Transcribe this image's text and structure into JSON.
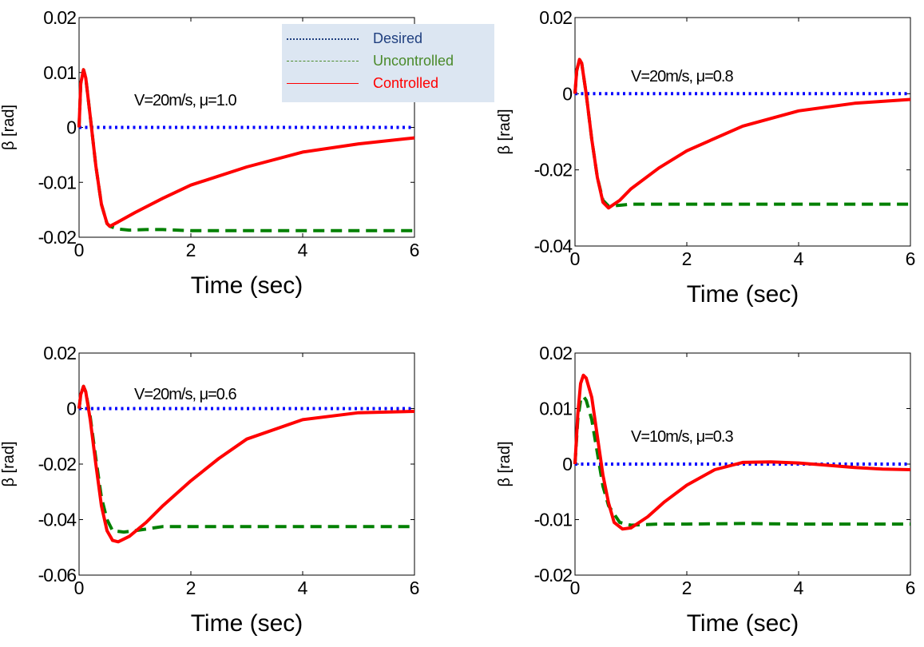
{
  "legend": {
    "items": [
      {
        "label": "Desired",
        "color": "#0000ff",
        "text_color": "#1f3f7f",
        "style": "dotted"
      },
      {
        "label": "Uncontrolled",
        "color": "#008000",
        "text_color": "#4a8a2a",
        "style": "dashed"
      },
      {
        "label": "Controlled",
        "color": "#ff0000",
        "text_color": "#ff0000",
        "style": "solid"
      }
    ]
  },
  "colors": {
    "desired": "#0000ff",
    "uncontrolled": "#008000",
    "controlled": "#ff0000"
  },
  "chart_data": [
    {
      "type": "line",
      "annotation": "V=20m/s, μ=1.0",
      "xlabel": "Time (sec)",
      "ylabel": "β [rad]",
      "xlim": [
        0,
        6
      ],
      "ylim": [
        -0.02,
        0.02
      ],
      "xticks": [
        "0",
        "2",
        "4",
        "6"
      ],
      "yticks": [
        "-0.02",
        "-0.01",
        "0",
        "0.01",
        "0.02"
      ],
      "series": [
        {
          "name": "Desired",
          "x": [
            0,
            6
          ],
          "y": [
            0,
            0
          ]
        },
        {
          "name": "Uncontrolled",
          "x": [
            0,
            0.03,
            0.08,
            0.12,
            0.2,
            0.3,
            0.4,
            0.5,
            0.55,
            0.7,
            0.9,
            1.2,
            1.5,
            2,
            3,
            4,
            5,
            6
          ],
          "y": [
            0,
            0.008,
            0.0105,
            0.009,
            0.002,
            -0.007,
            -0.014,
            -0.0175,
            -0.018,
            -0.0185,
            -0.0187,
            -0.0186,
            -0.0186,
            -0.0188,
            -0.0188,
            -0.0188,
            -0.0188,
            -0.0188
          ]
        },
        {
          "name": "Controlled",
          "x": [
            0,
            0.03,
            0.08,
            0.12,
            0.2,
            0.3,
            0.4,
            0.5,
            0.55,
            0.7,
            1,
            1.5,
            2,
            3,
            4,
            5,
            6
          ],
          "y": [
            0,
            0.008,
            0.0105,
            0.009,
            0.002,
            -0.007,
            -0.014,
            -0.0175,
            -0.018,
            -0.0172,
            -0.0155,
            -0.0129,
            -0.0105,
            -0.0072,
            -0.0045,
            -0.003,
            -0.0019
          ]
        }
      ]
    },
    {
      "type": "line",
      "annotation": "V=20m/s, μ=0.8",
      "xlabel": "Time (sec)",
      "ylabel": "β [rad]",
      "xlim": [
        0,
        6
      ],
      "ylim": [
        -0.04,
        0.02
      ],
      "xticks": [
        "0",
        "2",
        "4",
        "6"
      ],
      "yticks": [
        "-0.04",
        "-0.02",
        "0",
        "0.02"
      ],
      "series": [
        {
          "name": "Desired",
          "x": [
            0,
            6
          ],
          "y": [
            0,
            0
          ]
        },
        {
          "name": "Uncontrolled",
          "x": [
            0,
            0.03,
            0.08,
            0.12,
            0.2,
            0.3,
            0.4,
            0.5,
            0.6,
            0.8,
            1,
            1.5,
            2,
            3,
            4,
            5,
            6
          ],
          "y": [
            0,
            0.006,
            0.009,
            0.008,
            0,
            -0.012,
            -0.022,
            -0.028,
            -0.0295,
            -0.0293,
            -0.029,
            -0.029,
            -0.029,
            -0.029,
            -0.029,
            -0.029,
            -0.029
          ]
        },
        {
          "name": "Controlled",
          "x": [
            0,
            0.03,
            0.08,
            0.12,
            0.2,
            0.3,
            0.4,
            0.5,
            0.6,
            0.8,
            1,
            1.5,
            2,
            3,
            4,
            5,
            6
          ],
          "y": [
            0,
            0.006,
            0.009,
            0.008,
            0,
            -0.012,
            -0.022,
            -0.0285,
            -0.03,
            -0.028,
            -0.025,
            -0.0195,
            -0.015,
            -0.0085,
            -0.0045,
            -0.0025,
            -0.0015
          ]
        }
      ]
    },
    {
      "type": "line",
      "annotation": "V=20m/s, μ=0.6",
      "xlabel": "Time (sec)",
      "ylabel": "β [rad]",
      "xlim": [
        0,
        6
      ],
      "ylim": [
        -0.06,
        0.02
      ],
      "xticks": [
        "0",
        "2",
        "4",
        "6"
      ],
      "yticks": [
        "-0.06",
        "-0.04",
        "-0.02",
        "0",
        "0.02"
      ],
      "series": [
        {
          "name": "Desired",
          "x": [
            0,
            6
          ],
          "y": [
            0,
            0
          ]
        },
        {
          "name": "Uncontrolled",
          "x": [
            0,
            0.03,
            0.08,
            0.12,
            0.2,
            0.3,
            0.4,
            0.5,
            0.6,
            0.8,
            1,
            1.5,
            2,
            3,
            4,
            5,
            6
          ],
          "y": [
            0,
            0.005,
            0.008,
            0.006,
            -0.003,
            -0.018,
            -0.032,
            -0.04,
            -0.044,
            -0.0445,
            -0.044,
            -0.0425,
            -0.0425,
            -0.0425,
            -0.0425,
            -0.0425,
            -0.0425
          ]
        },
        {
          "name": "Controlled",
          "x": [
            0,
            0.03,
            0.08,
            0.12,
            0.2,
            0.3,
            0.4,
            0.5,
            0.6,
            0.7,
            0.9,
            1.2,
            1.5,
            2,
            2.5,
            3,
            4,
            5,
            6
          ],
          "y": [
            0,
            0.005,
            0.008,
            0.006,
            -0.004,
            -0.02,
            -0.035,
            -0.044,
            -0.0475,
            -0.048,
            -0.046,
            -0.041,
            -0.035,
            -0.026,
            -0.018,
            -0.011,
            -0.004,
            -0.0015,
            -0.001
          ]
        }
      ]
    },
    {
      "type": "line",
      "annotation": "V=10m/s, μ=0.3",
      "xlabel": "Time (sec)",
      "ylabel": "β [rad]",
      "xlim": [
        0,
        6
      ],
      "ylim": [
        -0.02,
        0.02
      ],
      "xticks": [
        "0",
        "2",
        "4",
        "6"
      ],
      "yticks": [
        "-0.02",
        "-0.01",
        "0",
        "0.01",
        "0.02"
      ],
      "series": [
        {
          "name": "Desired",
          "x": [
            0,
            6
          ],
          "y": [
            0,
            0
          ]
        },
        {
          "name": "Uncontrolled",
          "x": [
            0,
            0.05,
            0.1,
            0.15,
            0.2,
            0.3,
            0.4,
            0.5,
            0.6,
            0.8,
            1,
            1.5,
            2,
            3,
            4,
            5,
            6
          ],
          "y": [
            0,
            0.008,
            0.0115,
            0.0122,
            0.0115,
            0.008,
            0.002,
            -0.004,
            -0.0075,
            -0.0105,
            -0.011,
            -0.0108,
            -0.0108,
            -0.0107,
            -0.0108,
            -0.0108,
            -0.0108
          ]
        },
        {
          "name": "Controlled",
          "x": [
            0,
            0.05,
            0.1,
            0.15,
            0.2,
            0.3,
            0.4,
            0.5,
            0.6,
            0.7,
            0.85,
            1,
            1.3,
            1.6,
            2,
            2.5,
            3,
            3.5,
            4,
            4.5,
            5,
            5.5,
            6
          ],
          "y": [
            0,
            0.009,
            0.0145,
            0.016,
            0.0155,
            0.012,
            0.005,
            -0.002,
            -0.007,
            -0.0105,
            -0.0117,
            -0.0115,
            -0.0095,
            -0.0068,
            -0.0038,
            -0.001,
            0.0003,
            0.0004,
            0.0002,
            -0.0002,
            -0.0006,
            -0.0009,
            -0.001
          ]
        }
      ]
    }
  ]
}
